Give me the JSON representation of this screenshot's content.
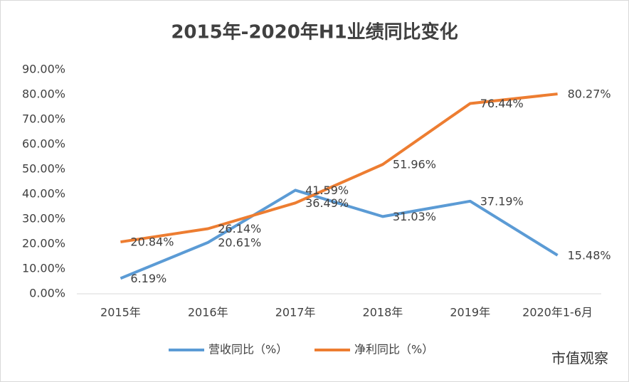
{
  "chart_data": {
    "type": "line",
    "title": "2015年-2020年H1业绩同比变化",
    "categories": [
      "2015年",
      "2016年",
      "2017年",
      "2018年",
      "2019年",
      "2020年1-6月"
    ],
    "series": [
      {
        "name": "营收同比（%）",
        "color": "#5b9bd5",
        "values": [
          6.19,
          20.61,
          41.59,
          31.03,
          37.19,
          15.48
        ],
        "value_labels": [
          "6.19%",
          "20.61%",
          "41.59%",
          "31.03%",
          "37.19%",
          "15.48%"
        ]
      },
      {
        "name": "净利同比（%）",
        "color": "#ed7d31",
        "values": [
          20.84,
          26.14,
          36.49,
          51.96,
          76.44,
          80.27
        ],
        "value_labels": [
          "20.84%",
          "26.14%",
          "36.49%",
          "51.96%",
          "76.44%",
          "80.27%"
        ]
      }
    ],
    "ylim": [
      0,
      90
    ],
    "yticks": [
      {
        "value": 0,
        "label": "0.00%"
      },
      {
        "value": 10,
        "label": "10.00%"
      },
      {
        "value": 20,
        "label": "20.00%"
      },
      {
        "value": 30,
        "label": "30.00%"
      },
      {
        "value": 40,
        "label": "40.00%"
      },
      {
        "value": 50,
        "label": "50.00%"
      },
      {
        "value": 60,
        "label": "60.00%"
      },
      {
        "value": 70,
        "label": "70.00%"
      },
      {
        "value": 80,
        "label": "80.00%"
      },
      {
        "value": 90,
        "label": "90.00%"
      }
    ],
    "grid": false,
    "legend": "bottom",
    "watermark": "市值观察"
  }
}
